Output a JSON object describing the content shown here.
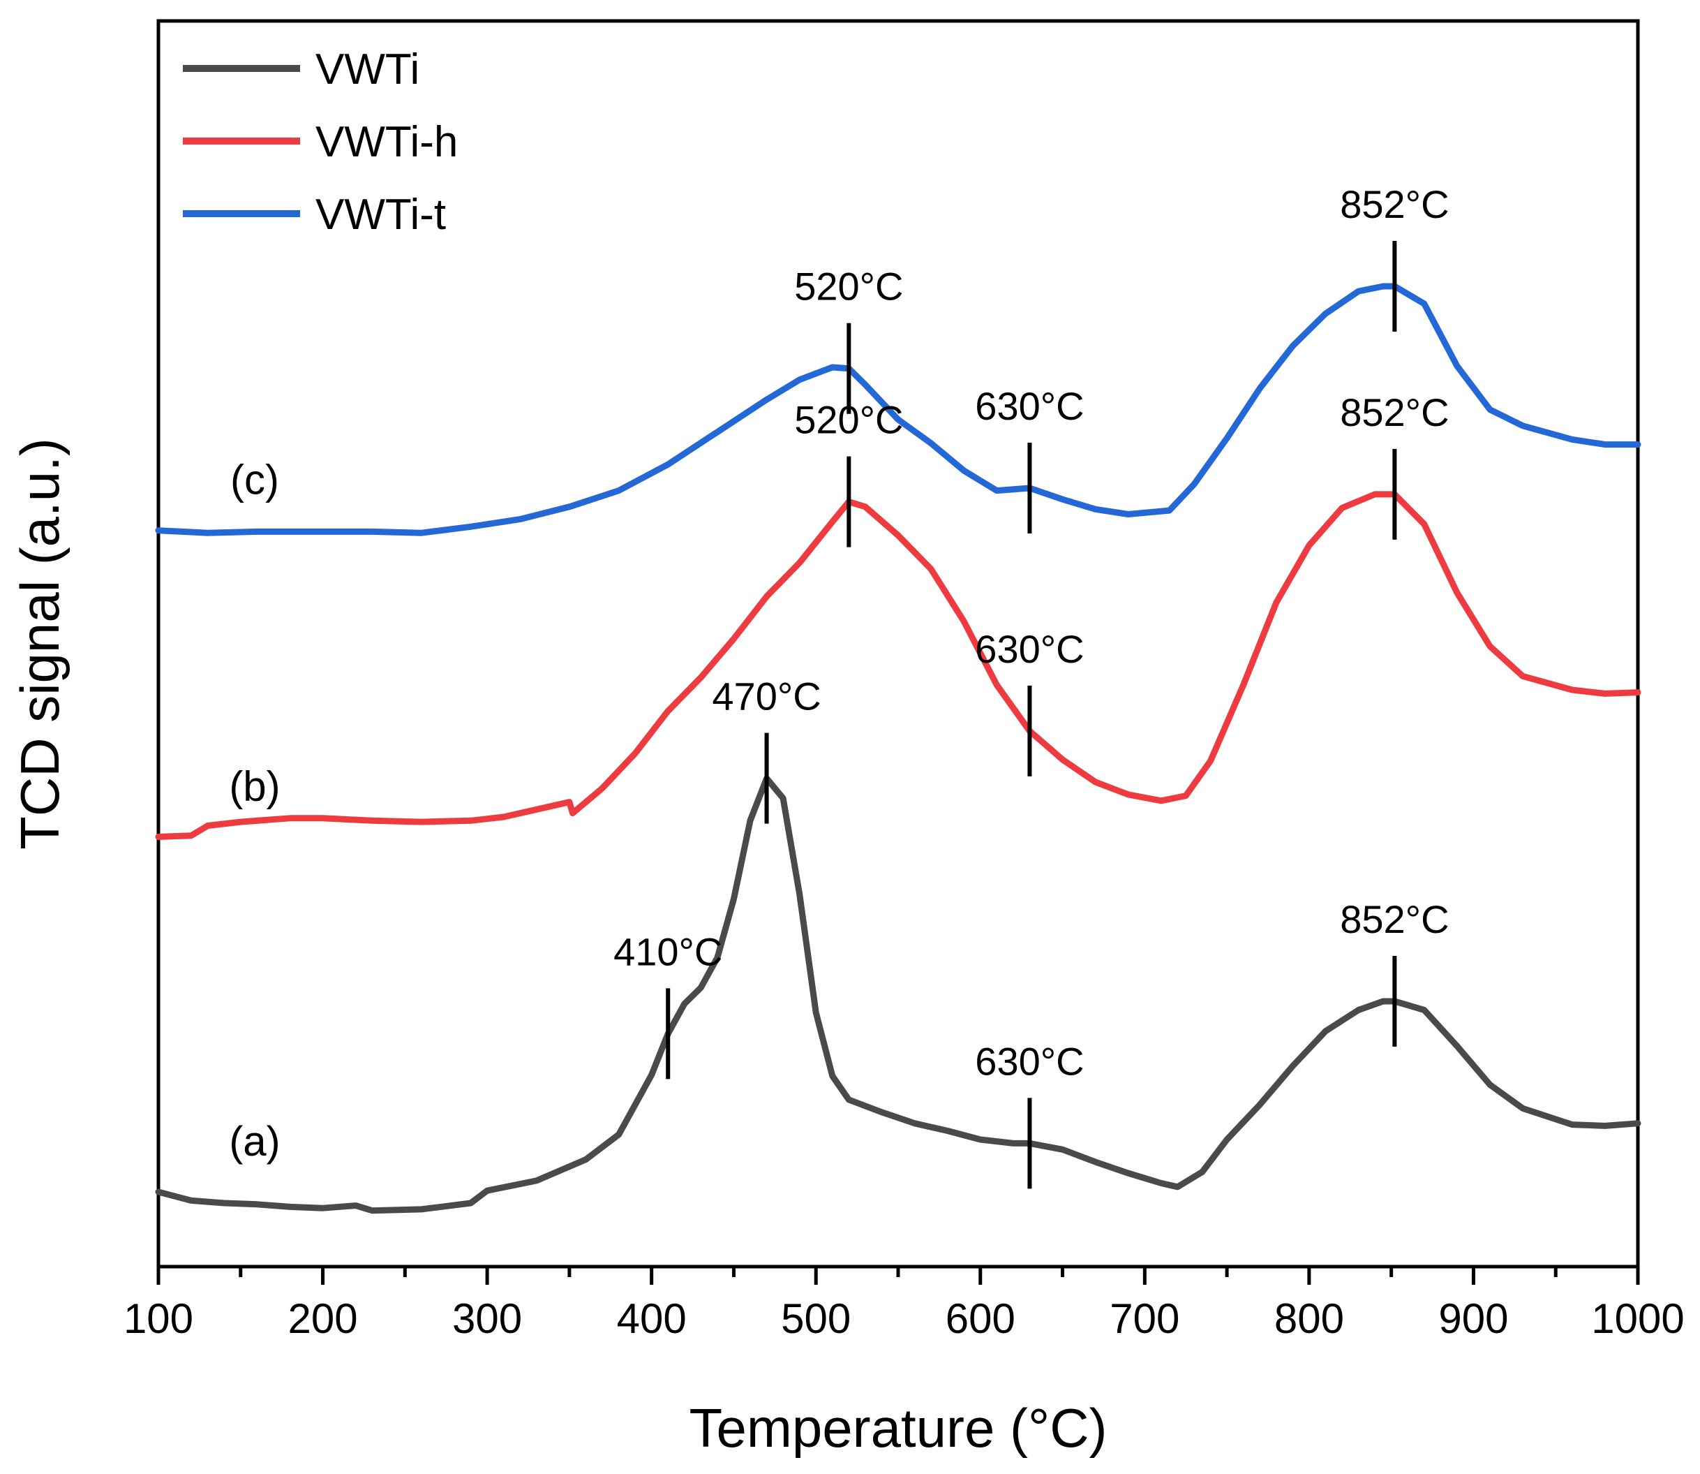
{
  "chart_data": {
    "type": "line",
    "xlabel": "Temperature (°C)",
    "ylabel": "TCD signal (a.u.)",
    "xlim": [
      100,
      1000
    ],
    "ylim": [
      0,
      100
    ],
    "xticks": [
      100,
      200,
      300,
      400,
      500,
      600,
      700,
      800,
      900,
      1000
    ],
    "yticks_shown": false,
    "grid": false,
    "legend_position": "top-left",
    "colors": {
      "VWTi": "#4a4a4a",
      "VWTi-h": "#ee3b3f",
      "VWTi-t": "#2468d8"
    },
    "series": [
      {
        "name": "VWTi",
        "curve_label": "(a)",
        "color": "#4a4a4a",
        "points": [
          [
            100,
            6.0
          ],
          [
            120,
            5.3
          ],
          [
            140,
            5.1
          ],
          [
            160,
            5.0
          ],
          [
            180,
            4.8
          ],
          [
            200,
            4.7
          ],
          [
            220,
            4.9
          ],
          [
            230,
            4.5
          ],
          [
            260,
            4.6
          ],
          [
            290,
            5.1
          ],
          [
            300,
            6.1
          ],
          [
            330,
            6.9
          ],
          [
            360,
            8.6
          ],
          [
            380,
            10.6
          ],
          [
            400,
            15.4
          ],
          [
            410,
            18.7
          ],
          [
            420,
            21.1
          ],
          [
            430,
            22.4
          ],
          [
            440,
            24.8
          ],
          [
            450,
            29.5
          ],
          [
            460,
            35.8
          ],
          [
            470,
            39.2
          ],
          [
            480,
            37.6
          ],
          [
            490,
            29.9
          ],
          [
            500,
            20.4
          ],
          [
            510,
            15.3
          ],
          [
            520,
            13.4
          ],
          [
            540,
            12.4
          ],
          [
            560,
            11.5
          ],
          [
            580,
            10.9
          ],
          [
            600,
            10.2
          ],
          [
            620,
            9.9
          ],
          [
            630,
            9.9
          ],
          [
            650,
            9.4
          ],
          [
            670,
            8.4
          ],
          [
            690,
            7.5
          ],
          [
            710,
            6.7
          ],
          [
            720,
            6.4
          ],
          [
            735,
            7.6
          ],
          [
            750,
            10.2
          ],
          [
            770,
            13.0
          ],
          [
            790,
            16.1
          ],
          [
            810,
            18.9
          ],
          [
            830,
            20.6
          ],
          [
            845,
            21.3
          ],
          [
            852,
            21.3
          ],
          [
            870,
            20.6
          ],
          [
            890,
            17.7
          ],
          [
            910,
            14.6
          ],
          [
            930,
            12.7
          ],
          [
            960,
            11.4
          ],
          [
            980,
            11.3
          ],
          [
            1000,
            11.5
          ]
        ]
      },
      {
        "name": "VWTi-h",
        "curve_label": "(b)",
        "color": "#ee3b3f",
        "points": [
          [
            100,
            34.5
          ],
          [
            120,
            34.6
          ],
          [
            130,
            35.4
          ],
          [
            150,
            35.7
          ],
          [
            180,
            36.0
          ],
          [
            200,
            36.0
          ],
          [
            230,
            35.8
          ],
          [
            260,
            35.7
          ],
          [
            290,
            35.8
          ],
          [
            310,
            36.1
          ],
          [
            330,
            36.7
          ],
          [
            350,
            37.3
          ],
          [
            352,
            36.4
          ],
          [
            370,
            38.4
          ],
          [
            390,
            41.2
          ],
          [
            410,
            44.6
          ],
          [
            430,
            47.3
          ],
          [
            450,
            50.4
          ],
          [
            470,
            53.8
          ],
          [
            490,
            56.5
          ],
          [
            510,
            59.8
          ],
          [
            520,
            61.4
          ],
          [
            530,
            61.0
          ],
          [
            550,
            58.7
          ],
          [
            570,
            56.0
          ],
          [
            590,
            51.8
          ],
          [
            610,
            46.7
          ],
          [
            630,
            43.0
          ],
          [
            650,
            40.7
          ],
          [
            670,
            38.9
          ],
          [
            690,
            37.9
          ],
          [
            710,
            37.4
          ],
          [
            725,
            37.8
          ],
          [
            740,
            40.6
          ],
          [
            760,
            46.7
          ],
          [
            780,
            53.3
          ],
          [
            800,
            57.9
          ],
          [
            820,
            60.9
          ],
          [
            840,
            62.0
          ],
          [
            852,
            62.0
          ],
          [
            870,
            59.6
          ],
          [
            890,
            54.1
          ],
          [
            910,
            49.8
          ],
          [
            930,
            47.4
          ],
          [
            960,
            46.3
          ],
          [
            980,
            46.0
          ],
          [
            1000,
            46.1
          ]
        ]
      },
      {
        "name": "VWTi-t",
        "curve_label": "(c)",
        "color": "#2468d8",
        "points": [
          [
            100,
            59.1
          ],
          [
            130,
            58.9
          ],
          [
            160,
            59.0
          ],
          [
            200,
            59.0
          ],
          [
            230,
            59.0
          ],
          [
            260,
            58.9
          ],
          [
            290,
            59.4
          ],
          [
            320,
            60.0
          ],
          [
            350,
            61.0
          ],
          [
            380,
            62.3
          ],
          [
            410,
            64.4
          ],
          [
            440,
            67.0
          ],
          [
            470,
            69.6
          ],
          [
            490,
            71.2
          ],
          [
            510,
            72.2
          ],
          [
            520,
            72.1
          ],
          [
            530,
            70.8
          ],
          [
            550,
            68.0
          ],
          [
            570,
            66.1
          ],
          [
            590,
            63.9
          ],
          [
            610,
            62.3
          ],
          [
            630,
            62.5
          ],
          [
            650,
            61.6
          ],
          [
            670,
            60.8
          ],
          [
            690,
            60.4
          ],
          [
            715,
            60.7
          ],
          [
            730,
            62.8
          ],
          [
            750,
            66.5
          ],
          [
            770,
            70.5
          ],
          [
            790,
            73.9
          ],
          [
            810,
            76.5
          ],
          [
            830,
            78.3
          ],
          [
            845,
            78.7
          ],
          [
            852,
            78.7
          ],
          [
            870,
            77.3
          ],
          [
            890,
            72.3
          ],
          [
            910,
            68.8
          ],
          [
            930,
            67.5
          ],
          [
            960,
            66.4
          ],
          [
            980,
            66.0
          ],
          [
            1000,
            66.0
          ]
        ]
      }
    ],
    "annotations": [
      {
        "series": "VWTi",
        "x": 410,
        "y": 18.7,
        "text": "410°C"
      },
      {
        "series": "VWTi",
        "x": 470,
        "y": 39.2,
        "text": "470°C"
      },
      {
        "series": "VWTi",
        "x": 630,
        "y": 9.9,
        "text": "630°C"
      },
      {
        "series": "VWTi",
        "x": 852,
        "y": 21.3,
        "text": "852°C"
      },
      {
        "series": "VWTi-h",
        "x": 520,
        "y": 61.4,
        "text": "520°C"
      },
      {
        "series": "VWTi-h",
        "x": 630,
        "y": 43.0,
        "text": "630°C"
      },
      {
        "series": "VWTi-h",
        "x": 852,
        "y": 62.0,
        "text": "852°C"
      },
      {
        "series": "VWTi-t",
        "x": 520,
        "y": 72.1,
        "text": "520°C"
      },
      {
        "series": "VWTi-t",
        "x": 630,
        "y": 62.5,
        "text": "630°C"
      },
      {
        "series": "VWTi-t",
        "x": 852,
        "y": 78.7,
        "text": "852°C"
      }
    ]
  }
}
